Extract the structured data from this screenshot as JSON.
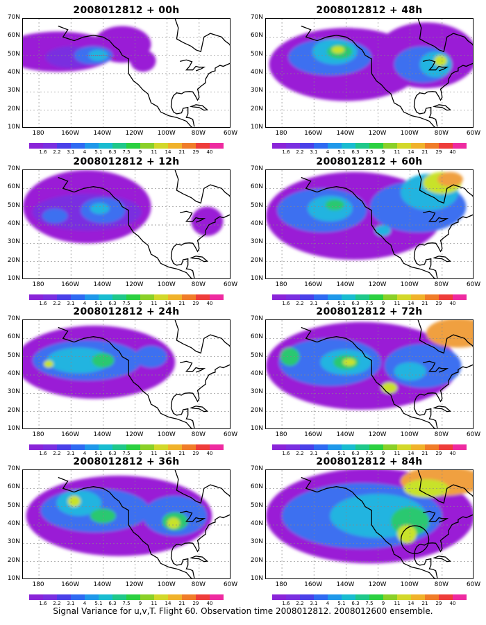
{
  "panels": [
    {
      "id": "p00",
      "title": "2008012812 + 00h",
      "blobs": [
        {
          "c": "#9a1fd6",
          "lon": -168,
          "lat": 52,
          "rx": 36,
          "ry": 11
        },
        {
          "c": "#9a1fd6",
          "lon": -128,
          "lat": 56,
          "rx": 18,
          "ry": 10
        },
        {
          "c": "#7a2fe0",
          "lon": -160,
          "lat": 49,
          "rx": 16,
          "ry": 6
        },
        {
          "c": "#3c70f0",
          "lon": -146,
          "lat": 50,
          "rx": 12,
          "ry": 5
        },
        {
          "c": "#23b4e0",
          "lon": -143,
          "lat": 50,
          "rx": 6,
          "ry": 3
        },
        {
          "c": "#9a1fd6",
          "lon": -115,
          "lat": 47,
          "rx": 8,
          "ry": 6
        }
      ]
    },
    {
      "id": "p48",
      "title": "2008012812 + 48h",
      "blobs": [
        {
          "c": "#9a1fd6",
          "lon": -140,
          "lat": 45,
          "rx": 48,
          "ry": 20
        },
        {
          "c": "#9a1fd6",
          "lon": -90,
          "lat": 50,
          "rx": 32,
          "ry": 18
        },
        {
          "c": "#3c70f0",
          "lon": -150,
          "lat": 49,
          "rx": 26,
          "ry": 10
        },
        {
          "c": "#23b4e0",
          "lon": -147,
          "lat": 52,
          "rx": 14,
          "ry": 7
        },
        {
          "c": "#2bc870",
          "lon": -144,
          "lat": 52,
          "rx": 8,
          "ry": 4
        },
        {
          "c": "#c8e22a",
          "lon": -145,
          "lat": 53,
          "rx": 4,
          "ry": 2
        },
        {
          "c": "#3c70f0",
          "lon": -92,
          "lat": 45,
          "rx": 18,
          "ry": 10
        },
        {
          "c": "#23b4e0",
          "lon": -84,
          "lat": 45,
          "rx": 10,
          "ry": 7
        },
        {
          "c": "#c8e22a",
          "lon": -81,
          "lat": 47,
          "rx": 4,
          "ry": 3
        }
      ]
    },
    {
      "id": "p12",
      "title": "2008012812 + 12h",
      "blobs": [
        {
          "c": "#9a1fd6",
          "lon": -150,
          "lat": 50,
          "rx": 40,
          "ry": 20
        },
        {
          "c": "#9a1fd6",
          "lon": -75,
          "lat": 42,
          "rx": 10,
          "ry": 8
        },
        {
          "c": "#7a2fe0",
          "lon": -150,
          "lat": 47,
          "rx": 34,
          "ry": 10
        },
        {
          "c": "#3c70f0",
          "lon": -140,
          "lat": 48,
          "rx": 14,
          "ry": 7
        },
        {
          "c": "#23b4e0",
          "lon": -142,
          "lat": 49,
          "rx": 6,
          "ry": 3
        },
        {
          "c": "#3c70f0",
          "lon": -170,
          "lat": 45,
          "rx": 8,
          "ry": 4
        }
      ]
    },
    {
      "id": "p60",
      "title": "2008012812 + 60h",
      "blobs": [
        {
          "c": "#9a1fd6",
          "lon": -135,
          "lat": 45,
          "rx": 55,
          "ry": 24
        },
        {
          "c": "#3c70f0",
          "lon": -155,
          "lat": 48,
          "rx": 28,
          "ry": 12
        },
        {
          "c": "#23b4e0",
          "lon": -150,
          "lat": 49,
          "rx": 14,
          "ry": 7
        },
        {
          "c": "#2bc870",
          "lon": -147,
          "lat": 51,
          "rx": 6,
          "ry": 3
        },
        {
          "c": "#3c70f0",
          "lon": -95,
          "lat": 50,
          "rx": 30,
          "ry": 14
        },
        {
          "c": "#23b4e0",
          "lon": -88,
          "lat": 58,
          "rx": 18,
          "ry": 10
        },
        {
          "c": "#c8e22a",
          "lon": -80,
          "lat": 63,
          "rx": 12,
          "ry": 6
        },
        {
          "c": "#f0a040",
          "lon": -75,
          "lat": 65,
          "rx": 8,
          "ry": 4
        },
        {
          "c": "#23b4e0",
          "lon": -117,
          "lat": 37,
          "rx": 5,
          "ry": 3
        }
      ]
    },
    {
      "id": "p24",
      "title": "2008012812 + 24h",
      "blobs": [
        {
          "c": "#9a1fd6",
          "lon": -145,
          "lat": 47,
          "rx": 50,
          "ry": 20
        },
        {
          "c": "#3c70f0",
          "lon": -150,
          "lat": 48,
          "rx": 34,
          "ry": 11
        },
        {
          "c": "#23b4e0",
          "lon": -155,
          "lat": 48,
          "rx": 20,
          "ry": 7
        },
        {
          "c": "#2bc870",
          "lon": -140,
          "lat": 48,
          "rx": 7,
          "ry": 4
        },
        {
          "c": "#c8e22a",
          "lon": -174,
          "lat": 46,
          "rx": 3,
          "ry": 2
        },
        {
          "c": "#3c70f0",
          "lon": -110,
          "lat": 50,
          "rx": 10,
          "ry": 6
        }
      ]
    },
    {
      "id": "p72",
      "title": "2008012812 + 72h",
      "blobs": [
        {
          "c": "#9a1fd6",
          "lon": -130,
          "lat": 45,
          "rx": 60,
          "ry": 24
        },
        {
          "c": "#3c70f0",
          "lon": -150,
          "lat": 47,
          "rx": 32,
          "ry": 13
        },
        {
          "c": "#23b4e0",
          "lon": -140,
          "lat": 47,
          "rx": 16,
          "ry": 7
        },
        {
          "c": "#2bc870",
          "lon": -140,
          "lat": 47,
          "rx": 8,
          "ry": 4
        },
        {
          "c": "#c8e22a",
          "lon": -138,
          "lat": 47,
          "rx": 4,
          "ry": 2
        },
        {
          "c": "#2bc870",
          "lon": -175,
          "lat": 50,
          "rx": 6,
          "ry": 5
        },
        {
          "c": "#3c70f0",
          "lon": -92,
          "lat": 45,
          "rx": 24,
          "ry": 12
        },
        {
          "c": "#23b4e0",
          "lon": -100,
          "lat": 42,
          "rx": 10,
          "ry": 5
        },
        {
          "c": "#c8e22a",
          "lon": -113,
          "lat": 33,
          "rx": 5,
          "ry": 3
        },
        {
          "c": "#f0a040",
          "lon": -70,
          "lat": 63,
          "rx": 20,
          "ry": 8
        }
      ]
    },
    {
      "id": "p36",
      "title": "2008012812 + 36h",
      "blobs": [
        {
          "c": "#9a1fd6",
          "lon": -130,
          "lat": 45,
          "rx": 58,
          "ry": 22
        },
        {
          "c": "#3c70f0",
          "lon": -145,
          "lat": 48,
          "rx": 34,
          "ry": 12
        },
        {
          "c": "#23b4e0",
          "lon": -155,
          "lat": 52,
          "rx": 14,
          "ry": 7
        },
        {
          "c": "#c8e22a",
          "lon": -158,
          "lat": 53,
          "rx": 4,
          "ry": 3
        },
        {
          "c": "#2bc870",
          "lon": -140,
          "lat": 45,
          "rx": 8,
          "ry": 4
        },
        {
          "c": "#3c70f0",
          "lon": -95,
          "lat": 45,
          "rx": 20,
          "ry": 11
        },
        {
          "c": "#2bc870",
          "lon": -95,
          "lat": 42,
          "rx": 8,
          "ry": 5
        },
        {
          "c": "#c8e22a",
          "lon": -96,
          "lat": 41,
          "rx": 4,
          "ry": 3
        }
      ]
    },
    {
      "id": "p84",
      "title": "2008012812 + 84h",
      "blobs": [
        {
          "c": "#9a1fd6",
          "lon": -125,
          "lat": 45,
          "rx": 65,
          "ry": 26
        },
        {
          "c": "#3c70f0",
          "lon": -130,
          "lat": 45,
          "rx": 50,
          "ry": 18
        },
        {
          "c": "#23b4e0",
          "lon": -120,
          "lat": 45,
          "rx": 30,
          "ry": 12
        },
        {
          "c": "#2bc870",
          "lon": -100,
          "lat": 42,
          "rx": 12,
          "ry": 8
        },
        {
          "c": "#c8e22a",
          "lon": -102,
          "lat": 35,
          "rx": 6,
          "ry": 5
        },
        {
          "c": "#f0a040",
          "lon": -80,
          "lat": 64,
          "rx": 26,
          "ry": 8
        },
        {
          "c": "#c8e22a",
          "lon": -90,
          "lat": 60,
          "rx": 14,
          "ry": 5
        }
      ]
    }
  ],
  "ylabels": [
    "70N",
    "60N",
    "50N",
    "40N",
    "30N",
    "20N",
    "10N"
  ],
  "xlabels": [
    "180",
    "160W",
    "140W",
    "120W",
    "100W",
    "80W",
    "60W"
  ],
  "colorbar": {
    "labels": [
      "1.6",
      "2.2",
      "3.1",
      "4",
      "5.1",
      "6.3",
      "7.5",
      "9",
      "11",
      "14",
      "21",
      "29",
      "40"
    ],
    "colors": [
      "#8a24d8",
      "#7a2fe0",
      "#4a40e8",
      "#2f6af2",
      "#1f98ea",
      "#19bcd0",
      "#1fc88a",
      "#2bd040",
      "#8ad028",
      "#d2d82a",
      "#f0b22a",
      "#f07c28",
      "#ee3c3a",
      "#ee2aa0"
    ]
  },
  "caption": "Signal Variance for u,v,T. Flight 60. Observation time 2008012812. 2008012600 ensemble."
}
